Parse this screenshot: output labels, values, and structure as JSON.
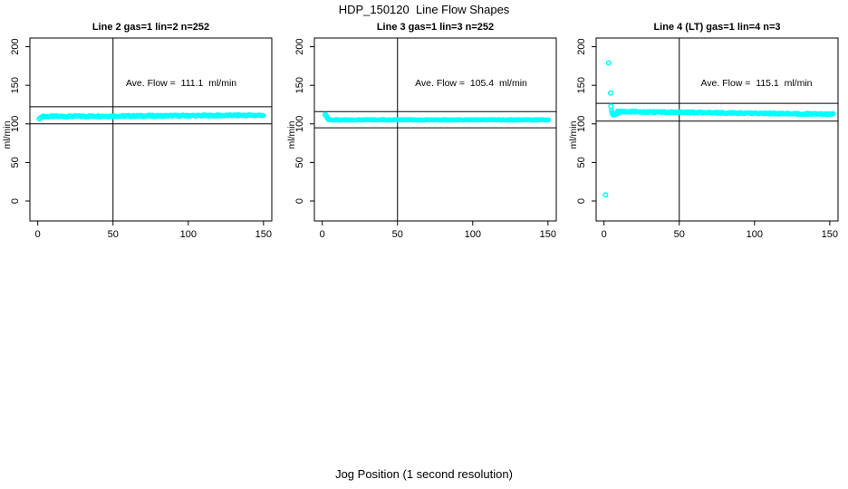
{
  "ui": {
    "title": "HDP_150120  Line Flow Shapes",
    "xlabel": "Jog Position (1 second resolution)"
  },
  "chart_data": {
    "type": "scatter",
    "title": "HDP_150120  Line Flow Shapes",
    "xlabel": "Jog Position (1 second resolution)",
    "ylabel": "ml/min",
    "x_ticks": [
      0,
      50,
      100,
      150
    ],
    "y_ticks": [
      0,
      50,
      100,
      150,
      200
    ],
    "xlim": [
      -6,
      156
    ],
    "ylim": [
      -26,
      212
    ],
    "grid": false,
    "point_color": "#00FFFF",
    "marker": "open-circle",
    "vline_x": 50,
    "panels": [
      {
        "title": "Line 2 gas=1 lin=2 n=252",
        "ave_flow": 111.1,
        "ave_flow_text": "Ave. Flow =  111.1  ml/min",
        "n": 252,
        "ylabel": "ml/min",
        "ref_lines": [
          100.0,
          122.2
        ],
        "outlier_points": [
          [
            1,
            106.5
          ],
          [
            2,
            108
          ],
          [
            3,
            109
          ]
        ],
        "band": {
          "x_from": 3,
          "x_to": 150.5,
          "flow_start": 109.5,
          "flow_end": 111.2,
          "wobble": 1.0,
          "step": 0.6
        }
      },
      {
        "title": "Line 3 gas=1 lin=3 n=252",
        "ave_flow": 105.4,
        "ave_flow_text": "Ave. Flow =  105.4  ml/min",
        "n": 252,
        "ylabel": "ml/min",
        "ref_lines": [
          94.9,
          115.9
        ],
        "outlier_points": [
          [
            2,
            112
          ],
          [
            2.6,
            110.5
          ],
          [
            3.2,
            108.5
          ],
          [
            3.8,
            107
          ]
        ],
        "band": {
          "x_from": 4,
          "x_to": 150.5,
          "flow_start": 105.2,
          "flow_end": 105.2,
          "wobble": 0.45,
          "step": 0.6
        }
      },
      {
        "title": "Line 4 (LT) gas=1 lin=4 n=3",
        "ave_flow": 115.1,
        "ave_flow_text": "Ave. Flow =  115.1  ml/min",
        "n": 3,
        "ylabel": "ml/min",
        "ref_lines": [
          103.6,
          126.6
        ],
        "outlier_points": [
          [
            1,
            8
          ],
          [
            3,
            179
          ],
          [
            4.4,
            140
          ],
          [
            4.6,
            123
          ],
          [
            5,
            117.5
          ],
          [
            5.4,
            114.5
          ],
          [
            5.8,
            112.5
          ],
          [
            6.4,
            111.5
          ],
          [
            7.2,
            112
          ],
          [
            8,
            112.8
          ],
          [
            9,
            113.6
          ]
        ],
        "band": {
          "x_from": 9,
          "x_to": 152.5,
          "flow_start": 116,
          "flow_end": 112.5,
          "wobble": 0.9,
          "step": 0.6
        }
      }
    ]
  }
}
